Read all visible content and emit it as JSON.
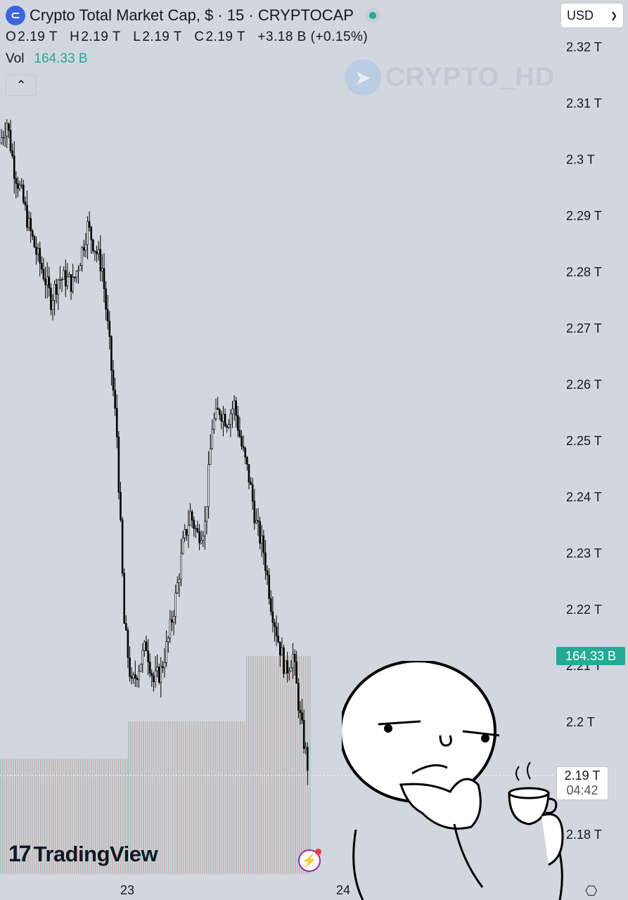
{
  "header": {
    "symbol_icon": "crypto-cap-icon",
    "title": "Crypto Total Market Cap, $ · 15 · CRYPTOCAP",
    "ohlc": {
      "o_label": "O",
      "o": "2.19 T",
      "h_label": "H",
      "h": "2.19 T",
      "l_label": "L",
      "l": "2.19 T",
      "c_label": "C",
      "c": "2.19 T",
      "change": "+3.18 B (+0.15%)"
    },
    "vol_label": "Vol",
    "vol_value": "164.33 B",
    "collapse_icon": "chevron-up-icon"
  },
  "currency": {
    "selected": "USD",
    "icon": "chevron-down-icon"
  },
  "watermark": {
    "text": "CRYPTO_HD",
    "icon": "telegram-icon"
  },
  "price_axis": {
    "labels": [
      "2.32 T",
      "2.31 T",
      "2.3 T",
      "2.29 T",
      "2.28 T",
      "2.27 T",
      "2.26 T",
      "2.25 T",
      "2.24 T",
      "2.23 T",
      "2.22 T",
      "2.21 T",
      "2.2 T",
      "2.18 T"
    ],
    "volume_tag": "164.33 B",
    "current_price": "2.19 T",
    "countdown": "04:42"
  },
  "time_axis": {
    "labels": [
      "23",
      "24"
    ]
  },
  "branding": {
    "name": "TradingView",
    "mark": "17"
  },
  "colors": {
    "background": "#d2d6de",
    "up": "#22ab94",
    "down": "#f23645",
    "candle": "#000000"
  },
  "chart_data": {
    "type": "candlestick",
    "title": "Crypto Total Market Cap, $ · 15 · CRYPTOCAP",
    "ylabel": "",
    "xlabel": "",
    "ylim": [
      2.175,
      2.3246
    ],
    "xticks": [
      "23",
      "24"
    ],
    "grid": false,
    "close_path": [
      2.309,
      2.313,
      2.304,
      2.299,
      2.293,
      2.288,
      2.284,
      2.279,
      2.283,
      2.283,
      2.282,
      2.287,
      2.293,
      2.289,
      2.285,
      2.27,
      2.253,
      2.217,
      2.205,
      2.209,
      2.213,
      2.206,
      2.208,
      2.214,
      2.222,
      2.232,
      2.238,
      2.234,
      2.236,
      2.255,
      2.258,
      2.256,
      2.259,
      2.251,
      2.245,
      2.236,
      2.231,
      2.221,
      2.214,
      2.208,
      2.211,
      2.199,
      2.19
    ]
  }
}
